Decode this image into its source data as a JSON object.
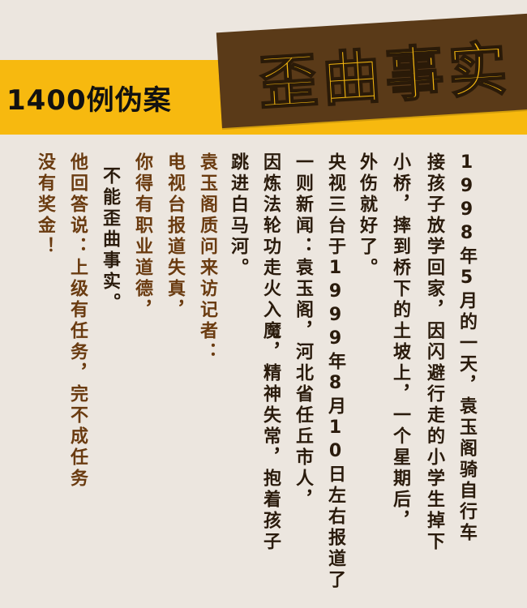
{
  "header": {
    "count_label": "1400例伪案",
    "title": "歪曲事实"
  },
  "body": {
    "col1": "1998年5月的一天，袁玉阁骑自行车",
    "col2": "接孩子放学回家，因闪避行走的小学生掉下",
    "col3": "小桥，摔到桥下的土坡上，一个星期后，",
    "col4": "外伤就好了。",
    "col5": "央视三台于1999年8月10日左右报道了",
    "col6": "一则新闻：袁玉阁，河北省任丘市人，",
    "col7": "因炼法轮功走火入魔，精神失常，抱着孩子",
    "col8": "跳进白马河。",
    "col9": "袁玉阁质问来访记者：",
    "col10": "电视台报道失真，",
    "col11": "你得有职业道德，",
    "col12": "不能歪曲事实。",
    "col13": "他回答说：上级有任务，完不成任务",
    "col14": "没有奖金！"
  },
  "colors": {
    "background": "#ece6df",
    "banner_yellow": "#f7b90f",
    "title_box_brown": "#5a3a18",
    "text_dark": "#2a1b0c",
    "text_brown": "#6a3b10"
  }
}
